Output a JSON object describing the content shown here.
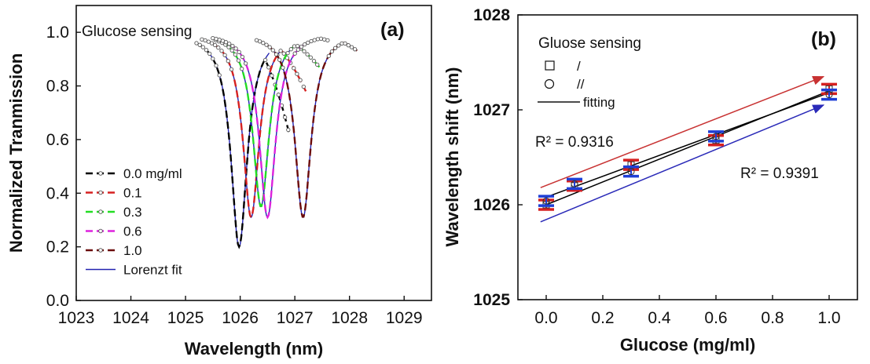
{
  "chart_data": [
    {
      "type": "line",
      "panel_label": "(a)",
      "annotation": "Glucose sensing",
      "xlabel": "Wavelength (nm)",
      "ylabel": "Normalized Tranmission",
      "xlim": [
        1023,
        1029.5
      ],
      "ylim": [
        0.0,
        1.1
      ],
      "xticks": [
        "1023",
        "1024",
        "1025",
        "1026",
        "1027",
        "1028",
        "1029"
      ],
      "yticks": [
        "0.0",
        "0.2",
        "0.4",
        "0.6",
        "0.8",
        "1.0"
      ],
      "legend_position": "left",
      "series": [
        {
          "name": "0.0 mg/ml",
          "color": "#000000",
          "center": 1025.98,
          "min": 0.2,
          "from": 1025.2,
          "to": 1026.9,
          "end_value": 0.62
        },
        {
          "name": "0.1",
          "color": "#d62020",
          "center": 1026.2,
          "min": 0.31,
          "from": 1025.3,
          "to": 1027.2,
          "end_value": 0.78
        },
        {
          "name": "0.3",
          "color": "#22dd22",
          "center": 1026.38,
          "min": 0.35,
          "from": 1025.55,
          "to": 1027.45,
          "end_value": 0.87
        },
        {
          "name": "0.6",
          "color": "#dd22dd",
          "center": 1026.5,
          "min": 0.31,
          "from": 1025.5,
          "to": 1027.6,
          "end_value": 0.97
        },
        {
          "name": "1.0",
          "color": "#6b0b0b",
          "center": 1027.15,
          "min": 0.31,
          "from": 1026.3,
          "to": 1028.15,
          "end_value": 0.93
        }
      ],
      "fit_legend": "Lorenzt fit",
      "fit_color": "#2323b0"
    },
    {
      "type": "scatter",
      "panel_label": "(b)",
      "annotation": "Gluose sensing",
      "xlabel": "Glucose (mg/ml)",
      "ylabel": "Wavelength shift (nm)",
      "xlim": [
        -0.1,
        1.1
      ],
      "ylim": [
        1025,
        1028
      ],
      "xticks": [
        "0.0",
        "0.2",
        "0.4",
        "0.6",
        "0.8",
        "1.0"
      ],
      "yticks": [
        "1025",
        "1026",
        "1027",
        "1028"
      ],
      "legend_position": "top-left",
      "legend": [
        {
          "label": "/",
          "marker": "square"
        },
        {
          "label": "//",
          "marker": "circle"
        },
        {
          "label": "fitting",
          "marker": "line"
        }
      ],
      "x": [
        0.0,
        0.1,
        0.3,
        0.6,
        1.0
      ],
      "series": [
        {
          "name": "/",
          "color": "#d62020",
          "values": [
            1026.0,
            1026.2,
            1026.42,
            1026.68,
            1027.22
          ]
        },
        {
          "name": "//",
          "color": "#1f3fd6",
          "values": [
            1026.04,
            1026.22,
            1026.35,
            1026.72,
            1027.16
          ]
        }
      ],
      "r2_labels": [
        "R² = 0.9316",
        "R² = 0.9391"
      ],
      "fit_lines": [
        {
          "from": [
            0.0,
            1026.0
          ],
          "to": [
            1.0,
            1027.2
          ],
          "color": "#000000"
        },
        {
          "from": [
            0.0,
            1026.08
          ],
          "to": [
            1.0,
            1027.18
          ],
          "color": "#000000"
        }
      ],
      "arrows": [
        {
          "from": [
            -0.02,
            1026.18
          ],
          "to": [
            0.98,
            1027.35
          ],
          "color": "#c83232"
        },
        {
          "from": [
            -0.02,
            1025.82
          ],
          "to": [
            0.98,
            1027.05
          ],
          "color": "#2a2ab8"
        }
      ]
    }
  ]
}
